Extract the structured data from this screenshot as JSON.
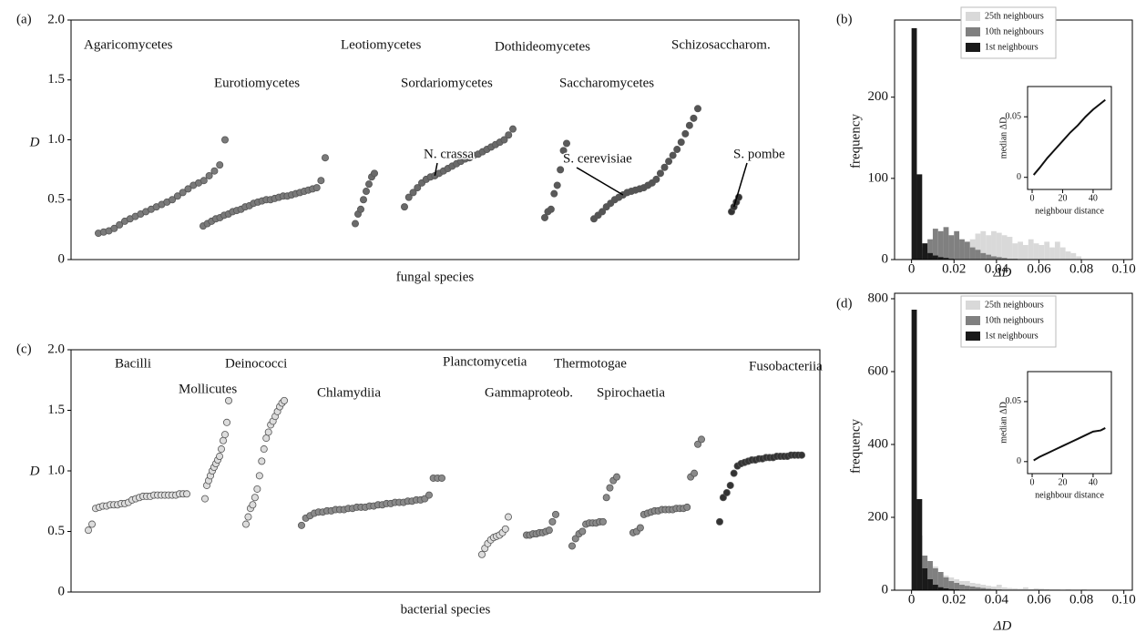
{
  "chart_data": [
    {
      "type": "scatter",
      "panel_label": "(a)",
      "ylabel": "D",
      "xlabel": "fungal species",
      "ylim": [
        0,
        2
      ],
      "yticks": [
        0,
        0.5,
        {
          "value": 1,
          "label": "1.0"
        },
        1.5,
        {
          "value": 2,
          "label": "2.0"
        }
      ],
      "series": [
        {
          "name": "Agaricomycetes",
          "color": "#7a7a7a",
          "values": [
            0.22,
            0.23,
            0.24,
            0.26,
            0.29,
            0.32,
            0.34,
            0.36,
            0.38,
            0.4,
            0.42,
            0.44,
            0.46,
            0.48,
            0.5,
            0.53,
            0.56,
            0.59,
            0.62,
            0.64,
            0.66,
            0.7,
            0.74,
            0.79,
            1.0
          ]
        },
        {
          "name": "Eurotiomycetes",
          "color": "#7a7a7a",
          "values": [
            0.28,
            0.3,
            0.32,
            0.34,
            0.35,
            0.37,
            0.38,
            0.4,
            0.41,
            0.42,
            0.44,
            0.45,
            0.47,
            0.48,
            0.49,
            0.5,
            0.5,
            0.51,
            0.52,
            0.53,
            0.53,
            0.54,
            0.55,
            0.56,
            0.57,
            0.58,
            0.59,
            0.6,
            0.66,
            0.85
          ]
        },
        {
          "name": "Leotiomycetes",
          "color": "#6a6a6a",
          "values": [
            0.3,
            0.38,
            0.42,
            0.5,
            0.57,
            0.63,
            0.69,
            0.72
          ]
        },
        {
          "name": "Sordariomycetes",
          "color": "#6a6a6a",
          "annotation": "N. crassa",
          "values": [
            0.44,
            0.52,
            0.56,
            0.6,
            0.64,
            0.67,
            0.69,
            0.7,
            0.72,
            0.74,
            0.76,
            0.78,
            0.8,
            0.82,
            0.84,
            0.85,
            0.87,
            0.88,
            0.9,
            0.92,
            0.94,
            0.96,
            0.98,
            1.0,
            1.04,
            1.09
          ]
        },
        {
          "name": "Dothideomycetes",
          "color": "#5a5a5a",
          "values": [
            0.35,
            0.4,
            0.42,
            0.55,
            0.62,
            0.75,
            0.91,
            0.97
          ]
        },
        {
          "name": "Saccharomycetes",
          "color": "#555555",
          "annotation": "S. cerevisiae",
          "values": [
            0.34,
            0.37,
            0.4,
            0.44,
            0.47,
            0.5,
            0.52,
            0.54,
            0.56,
            0.57,
            0.58,
            0.59,
            0.6,
            0.62,
            0.64,
            0.67,
            0.72,
            0.77,
            0.82,
            0.87,
            0.92,
            0.98,
            1.05,
            1.12,
            1.18,
            1.26
          ]
        },
        {
          "name": "Schizosaccharom.",
          "color": "#333333",
          "annotation": "S. pombe",
          "values": [
            0.4,
            0.44,
            0.48,
            0.52
          ]
        }
      ]
    },
    {
      "type": "histogram",
      "panel_label": "(b)",
      "ylabel": "frequency",
      "xlabel": "ΔD",
      "xlim": [
        -0.008,
        0.104
      ],
      "xticks": [
        0,
        0.02,
        0.04,
        0.06,
        0.08,
        {
          "value": 0.1,
          "label": "0.10"
        }
      ],
      "ylim": [
        0,
        295
      ],
      "yticks": [
        0,
        100,
        200
      ],
      "bins": [
        0,
        0.0025,
        0.005,
        0.0075,
        0.01,
        0.0125,
        0.015,
        0.0175,
        0.02,
        0.0225,
        0.025,
        0.0275,
        0.03,
        0.0325,
        0.035,
        0.0375,
        0.04,
        0.0425,
        0.045,
        0.0475,
        0.05,
        0.0525,
        0.055,
        0.0575,
        0.06,
        0.0625,
        0.065,
        0.0675,
        0.07,
        0.0725,
        0.075,
        0.0775,
        0.08
      ],
      "series": [
        {
          "name": "25th neighbours",
          "color": "#d9d9d9",
          "values": [
            0,
            0,
            0,
            2,
            4,
            6,
            8,
            10,
            12,
            15,
            20,
            25,
            32,
            35,
            30,
            35,
            33,
            30,
            28,
            20,
            22,
            18,
            25,
            20,
            18,
            22,
            15,
            22,
            15,
            10,
            8,
            4
          ]
        },
        {
          "name": "10th neighbours",
          "color": "#808080",
          "values": [
            0,
            5,
            15,
            25,
            38,
            35,
            40,
            30,
            35,
            25,
            22,
            15,
            12,
            8,
            6,
            4,
            3,
            2,
            1,
            1,
            0,
            0,
            0,
            0,
            0,
            0,
            0,
            0,
            0,
            0,
            0,
            0
          ]
        },
        {
          "name": "1st neighbours",
          "color": "#1a1a1a",
          "values": [
            285,
            105,
            20,
            8,
            5,
            3,
            2,
            1,
            0,
            0,
            0,
            0,
            0,
            0,
            0,
            0,
            0,
            0,
            0,
            0,
            0,
            0,
            0,
            0,
            0,
            0,
            0,
            0,
            0,
            0,
            0,
            0
          ]
        }
      ],
      "inset": {
        "type": "line",
        "xlabel": "neighbour distance",
        "ylabel": "median ΔD",
        "xlim": [
          -3,
          52
        ],
        "xticks": [
          0,
          20,
          40
        ],
        "ylim": [
          -0.01,
          0.075
        ],
        "yticks": [
          0,
          0.05
        ],
        "x": [
          1,
          5,
          10,
          15,
          20,
          25,
          30,
          35,
          40,
          45,
          48
        ],
        "values": [
          0.002,
          0.008,
          0.016,
          0.023,
          0.03,
          0.037,
          0.043,
          0.05,
          0.056,
          0.061,
          0.064
        ]
      }
    },
    {
      "type": "scatter",
      "panel_label": "(c)",
      "ylabel": "D",
      "xlabel": "bacterial species",
      "ylim": [
        0,
        2
      ],
      "yticks": [
        0,
        0.5,
        {
          "value": 1,
          "label": "1.0"
        },
        1.5,
        {
          "value": 2,
          "label": "2.0"
        }
      ],
      "series": [
        {
          "name": "Bacilli",
          "color": "#dcdcdc",
          "values": [
            0.51,
            0.56,
            0.69,
            0.7,
            0.71,
            0.71,
            0.72,
            0.72,
            0.72,
            0.73,
            0.73,
            0.74,
            0.76,
            0.77,
            0.78,
            0.79,
            0.79,
            0.79,
            0.8,
            0.8,
            0.8,
            0.8,
            0.8,
            0.8,
            0.8,
            0.81,
            0.81,
            0.81
          ]
        },
        {
          "name": "Mollicutes",
          "color": "#dcdcdc",
          "values": [
            0.77,
            0.88,
            0.92,
            0.96,
            1.0,
            1.03,
            1.06,
            1.09,
            1.12,
            1.18,
            1.25,
            1.3,
            1.4,
            1.58
          ]
        },
        {
          "name": "Deinococci",
          "color": "#dcdcdc",
          "values": [
            0.56,
            0.62,
            0.69,
            0.72,
            0.78,
            0.85,
            0.96,
            1.08,
            1.18,
            1.27,
            1.32,
            1.38,
            1.41,
            1.45,
            1.49,
            1.53,
            1.56,
            1.58
          ]
        },
        {
          "name": "Chlamydiia",
          "color": "#8a8a8a",
          "values": [
            0.55,
            0.61,
            0.63,
            0.65,
            0.66,
            0.66,
            0.67,
            0.67,
            0.68,
            0.68,
            0.68,
            0.69,
            0.69,
            0.7,
            0.7,
            0.7,
            0.71,
            0.71,
            0.72,
            0.72,
            0.73,
            0.73,
            0.74,
            0.74,
            0.74,
            0.75,
            0.75,
            0.76,
            0.76,
            0.77,
            0.8,
            0.94,
            0.94,
            0.94
          ]
        },
        {
          "name": "Planctomycetia",
          "color": "#dcdcdc",
          "values": [
            0.31,
            0.36,
            0.4,
            0.43,
            0.45,
            0.46,
            0.47,
            0.49,
            0.52,
            0.62
          ]
        },
        {
          "name": "Gammaproteob.",
          "color": "#8a8a8a",
          "values": [
            0.47,
            0.47,
            0.48,
            0.48,
            0.49,
            0.49,
            0.5,
            0.51,
            0.58,
            0.64
          ]
        },
        {
          "name": "Thermotogae",
          "color": "#8a8a8a",
          "values": [
            0.38,
            0.44,
            0.48,
            0.5,
            0.56,
            0.57,
            0.57,
            0.57,
            0.58,
            0.58,
            0.78,
            0.86,
            0.92,
            0.95
          ]
        },
        {
          "name": "Spirochaetia",
          "color": "#8a8a8a",
          "values": [
            0.49,
            0.5,
            0.53,
            0.64,
            0.65,
            0.66,
            0.67,
            0.67,
            0.68,
            0.68,
            0.68,
            0.68,
            0.69,
            0.69,
            0.69,
            0.7,
            0.95,
            0.98,
            1.22,
            1.26
          ]
        },
        {
          "name": "Fusobacteriia",
          "color": "#333333",
          "values": [
            0.58,
            0.78,
            0.82,
            0.88,
            0.98,
            1.04,
            1.06,
            1.07,
            1.08,
            1.09,
            1.09,
            1.1,
            1.1,
            1.11,
            1.11,
            1.11,
            1.12,
            1.12,
            1.12,
            1.12,
            1.13,
            1.13,
            1.13,
            1.13
          ]
        }
      ]
    },
    {
      "type": "histogram",
      "panel_label": "(d)",
      "ylabel": "frequency",
      "xlabel": "ΔD",
      "xlim": [
        -0.008,
        0.104
      ],
      "xticks": [
        0,
        0.02,
        0.04,
        0.06,
        0.08,
        {
          "value": 0.1,
          "label": "0.10"
        }
      ],
      "ylim": [
        0,
        815
      ],
      "yticks": [
        0,
        200,
        400,
        600,
        800
      ],
      "bins": [
        0,
        0.0025,
        0.005,
        0.0075,
        0.01,
        0.0125,
        0.015,
        0.0175,
        0.02,
        0.0225,
        0.025,
        0.0275,
        0.03,
        0.0325,
        0.035,
        0.0375,
        0.04,
        0.0425,
        0.045,
        0.0475,
        0.05,
        0.0525,
        0.055,
        0.0575,
        0.06,
        0.0625,
        0.065,
        0.0675,
        0.07,
        0.0725,
        0.075,
        0.0775,
        0.08,
        0.0825,
        0.085,
        0.0875,
        0.09,
        0.0925,
        0.095,
        0.0975,
        0.1
      ],
      "series": [
        {
          "name": "25th neighbours",
          "color": "#d9d9d9",
          "values": [
            0,
            60,
            90,
            70,
            65,
            50,
            40,
            35,
            30,
            25,
            25,
            20,
            18,
            15,
            12,
            10,
            15,
            8,
            6,
            5,
            4,
            8,
            3,
            5,
            4,
            3,
            2,
            2,
            1,
            2,
            1,
            1,
            2,
            1,
            0,
            1,
            1,
            0,
            1,
            0
          ]
        },
        {
          "name": "10th neighbours",
          "color": "#808080",
          "values": [
            0,
            150,
            95,
            80,
            60,
            50,
            35,
            25,
            20,
            15,
            12,
            10,
            8,
            6,
            4,
            3,
            2,
            1,
            1,
            0,
            0,
            0,
            0,
            0,
            0,
            0,
            0,
            0,
            0,
            0,
            0,
            0,
            0,
            0,
            0,
            0,
            0,
            0,
            0,
            0
          ]
        },
        {
          "name": "1st neighbours",
          "color": "#1a1a1a",
          "values": [
            770,
            250,
            60,
            30,
            15,
            8,
            5,
            3,
            2,
            1,
            0,
            0,
            0,
            0,
            0,
            0,
            0,
            0,
            0,
            0,
            0,
            0,
            0,
            0,
            0,
            0,
            0,
            0,
            0,
            0,
            0,
            0,
            0,
            0,
            0,
            0,
            0,
            0,
            0,
            0
          ]
        }
      ],
      "inset": {
        "type": "line",
        "xlabel": "neighbour distance",
        "ylabel": "median ΔD",
        "xlim": [
          -3,
          52
        ],
        "xticks": [
          0,
          20,
          40
        ],
        "ylim": [
          -0.01,
          0.075
        ],
        "yticks": [
          0,
          0.05
        ],
        "x": [
          1,
          5,
          10,
          15,
          20,
          25,
          30,
          35,
          40,
          45,
          48
        ],
        "values": [
          0.001,
          0.004,
          0.007,
          0.01,
          0.013,
          0.016,
          0.019,
          0.022,
          0.025,
          0.026,
          0.028
        ]
      }
    }
  ]
}
